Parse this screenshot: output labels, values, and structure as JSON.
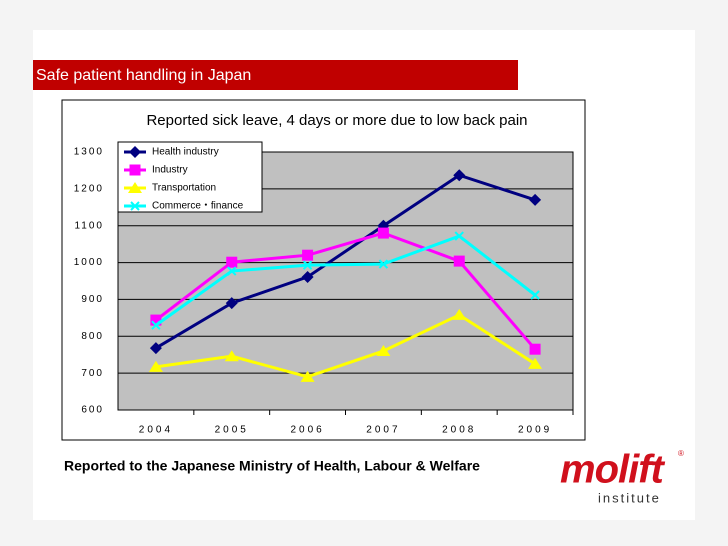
{
  "header": {
    "title": "Safe patient handling in Japan"
  },
  "chart_data": {
    "type": "line",
    "title": "Reported sick leave, 4 days or more due to low back pain",
    "categories": [
      "2004",
      "2005",
      "2006",
      "2007",
      "2008",
      "2009"
    ],
    "series": [
      {
        "name": "Health industry",
        "color": "#000080",
        "marker": "diamond",
        "values": [
          768,
          890,
          961,
          1100,
          1237,
          1170
        ]
      },
      {
        "name": "Industry",
        "color": "#ff00ff",
        "marker": "square",
        "values": [
          844,
          1001,
          1020,
          1080,
          1004,
          765
        ]
      },
      {
        "name": "Transportation",
        "color": "#ffff00",
        "marker": "triangle",
        "values": [
          717,
          746,
          690,
          760,
          858,
          725
        ]
      },
      {
        "name": "Commerce・finance",
        "color": "#00ffff",
        "marker": "x",
        "values": [
          830,
          977,
          993,
          996,
          1072,
          912
        ]
      }
    ],
    "ylim": [
      600,
      1300
    ],
    "yticks": [
      600,
      700,
      800,
      900,
      1000,
      1100,
      1200,
      1300
    ],
    "grid": true,
    "legend": "top-left",
    "plot_background": "#c0c0c0"
  },
  "footer": {
    "source": "Reported to the Japanese Ministry of Health, Labour & Welfare"
  },
  "logo": {
    "name": "molift",
    "mark": "®",
    "subtitle": "institute"
  }
}
